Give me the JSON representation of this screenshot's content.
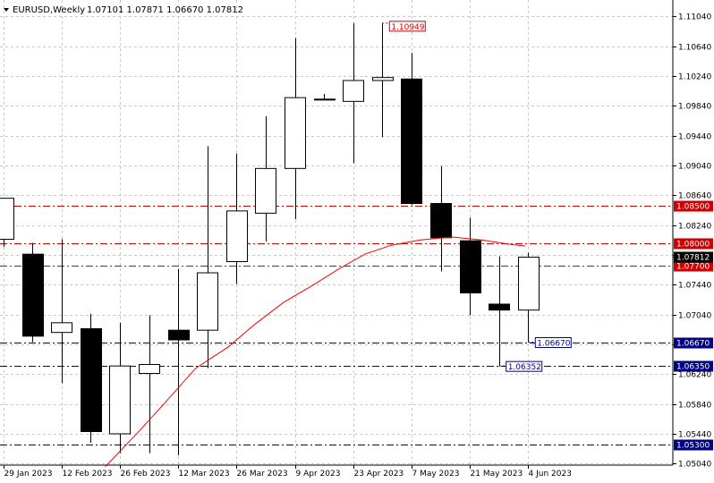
{
  "header": {
    "symbol": "EURUSD,Weekly",
    "ohlc": "1.07101 1.07871 1.06670 1.07812"
  },
  "colors": {
    "background": "#ffffff",
    "grid": "#c8c8c8",
    "candle_up_fill": "#ffffff",
    "candle_down_fill": "#000000",
    "candle_outline": "#000000",
    "ma_line": "#ff0000",
    "resistance": "#cc0000",
    "support": "#000080",
    "price_label": "#000000"
  },
  "chart_data": {
    "type": "candlestick",
    "ylim": [
      1.0502,
      1.1126
    ],
    "y_ticks": [
      "1.11040",
      "1.10640",
      "1.10240",
      "1.09840",
      "1.09440",
      "1.09040",
      "1.08640",
      "1.08240",
      "1.07840",
      "1.07440",
      "1.07040",
      "1.06640",
      "1.06240",
      "1.05840",
      "1.05440",
      "1.05040"
    ],
    "x_labels": [
      "29 Jan 2023",
      "12 Feb 2023",
      "26 Feb 2023",
      "12 Mar 2023",
      "26 Mar 2023",
      "9 Apr 2023",
      "23 Apr 2023",
      "7 May 2023",
      "21 May 2023",
      "4 Jun 2023"
    ],
    "candles": [
      {
        "o": 1.0805,
        "h": 1.086,
        "l": 1.0795,
        "c": 1.086
      },
      {
        "o": 1.0785,
        "h": 1.08,
        "l": 1.0667,
        "c": 1.0675
      },
      {
        "o": 1.068,
        "h": 1.0805,
        "l": 1.0612,
        "c": 1.0693
      },
      {
        "o": 1.0685,
        "h": 1.0705,
        "l": 1.0532,
        "c": 1.0547
      },
      {
        "o": 1.0544,
        "h": 1.0693,
        "l": 1.0518,
        "c": 1.0635
      },
      {
        "o": 1.0625,
        "h": 1.0703,
        "l": 1.0518,
        "c": 1.0637
      },
      {
        "o": 1.0683,
        "h": 1.0765,
        "l": 1.0515,
        "c": 1.067
      },
      {
        "o": 1.0683,
        "h": 1.093,
        "l": 1.0632,
        "c": 1.076
      },
      {
        "o": 1.0775,
        "h": 1.092,
        "l": 1.0745,
        "c": 1.0843
      },
      {
        "o": 1.084,
        "h": 1.097,
        "l": 1.0802,
        "c": 1.09
      },
      {
        "o": 1.09,
        "h": 1.1075,
        "l": 1.0832,
        "c": 1.0995
      },
      {
        "o": 1.0993,
        "h": 1.1,
        "l": 1.0993,
        "c": 1.0993
      },
      {
        "o": 1.099,
        "h": 1.1095,
        "l": 1.0907,
        "c": 1.1018
      },
      {
        "o": 1.1018,
        "h": 1.1095,
        "l": 1.0942,
        "c": 1.1022
      },
      {
        "o": 1.102,
        "h": 1.1055,
        "l": 1.0851,
        "c": 1.0853
      },
      {
        "o": 1.0853,
        "h": 1.0903,
        "l": 1.0762,
        "c": 1.0807
      },
      {
        "o": 1.0803,
        "h": 1.0834,
        "l": 1.0703,
        "c": 1.0733
      },
      {
        "o": 1.0718,
        "h": 1.0782,
        "l": 1.0635,
        "c": 1.071
      },
      {
        "o": 1.071,
        "h": 1.0787,
        "l": 1.0667,
        "c": 1.0781
      }
    ],
    "moving_average": [
      {
        "i": 3.5,
        "v": 1.05
      },
      {
        "i": 4.6,
        "v": 1.0545
      },
      {
        "i": 5.6,
        "v": 1.0588
      },
      {
        "i": 6.6,
        "v": 1.0632
      },
      {
        "i": 7.7,
        "v": 1.066
      },
      {
        "i": 8.6,
        "v": 1.069
      },
      {
        "i": 9.6,
        "v": 1.072
      },
      {
        "i": 10.6,
        "v": 1.0743
      },
      {
        "i": 11.5,
        "v": 1.0765
      },
      {
        "i": 12.4,
        "v": 1.0785
      },
      {
        "i": 13.3,
        "v": 1.0797
      },
      {
        "i": 14.3,
        "v": 1.0804
      },
      {
        "i": 15.4,
        "v": 1.0808
      },
      {
        "i": 16.4,
        "v": 1.0804
      },
      {
        "i": 17.4,
        "v": 1.0798
      },
      {
        "i": 17.9,
        "v": 1.0796
      }
    ],
    "levels": [
      {
        "price": 1.085,
        "label": "1.08500",
        "kind": "resistance"
      },
      {
        "price": 1.08,
        "label": "1.08000",
        "kind": "resistance"
      },
      {
        "price": 1.077,
        "label": "1.07700",
        "kind": "resistance"
      },
      {
        "price": 1.0667,
        "label": "1.06670",
        "kind": "support"
      },
      {
        "price": 1.0635,
        "label": "1.06350",
        "kind": "support"
      },
      {
        "price": 1.053,
        "label": "1.05300",
        "kind": "support"
      }
    ],
    "current_price": {
      "price": 1.07812,
      "label": "1.07812"
    },
    "annotations": [
      {
        "text": "1.10949",
        "candle": 13,
        "price": 1.1095,
        "kind": "high"
      },
      {
        "text": "1.06670",
        "candle": 18,
        "price": 1.0667,
        "kind": "low"
      },
      {
        "text": "1.06352",
        "candle": 17,
        "price": 1.0635,
        "kind": "low"
      }
    ]
  }
}
